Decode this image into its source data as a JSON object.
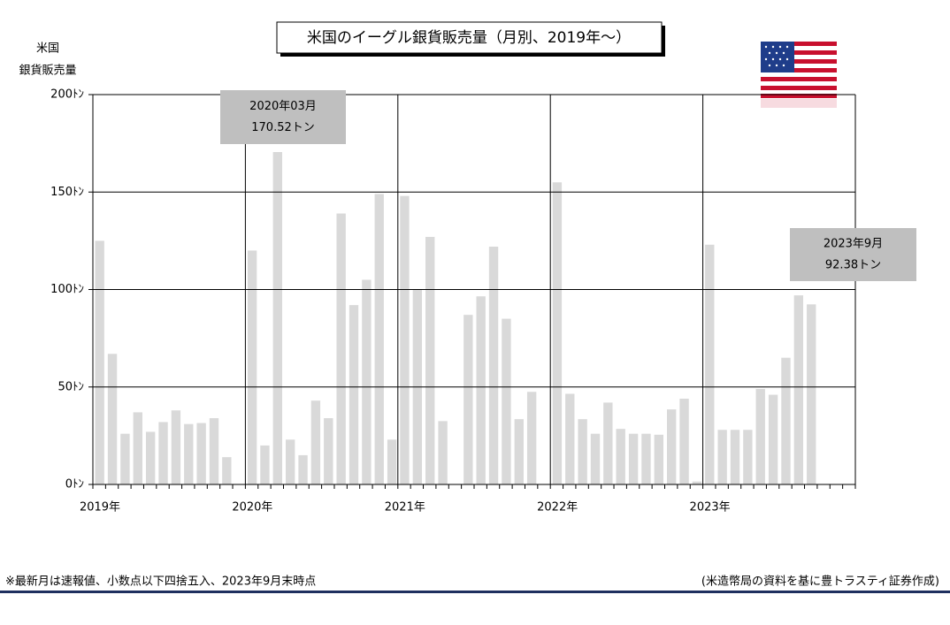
{
  "chart_data": {
    "type": "bar",
    "title": "米国のイーグル銀貨販売量（月別、2019年～）",
    "y_label": [
      "米国",
      "銀貨販売量"
    ],
    "categories": [
      "2019年",
      null,
      null,
      null,
      null,
      null,
      null,
      null,
      null,
      null,
      null,
      null,
      "2020年",
      null,
      null,
      null,
      null,
      null,
      null,
      null,
      null,
      null,
      null,
      null,
      "2021年",
      null,
      null,
      null,
      null,
      null,
      null,
      null,
      null,
      null,
      null,
      null,
      "2022年",
      null,
      null,
      null,
      null,
      null,
      null,
      null,
      null,
      null,
      null,
      null,
      "2023年",
      null,
      null,
      null,
      null,
      null,
      null,
      null,
      null,
      null,
      null,
      null
    ],
    "values": [
      125,
      67,
      26,
      37,
      27,
      32,
      38,
      31,
      31.5,
      34,
      14,
      0,
      120,
      20,
      170.52,
      23,
      15,
      43,
      34,
      139,
      92,
      105,
      149,
      23,
      148,
      100,
      127,
      32.5,
      0,
      87,
      96.5,
      122,
      85,
      33.5,
      47.5,
      0,
      155,
      46.5,
      33.5,
      26,
      42,
      28.5,
      26,
      26,
      25.5,
      38.5,
      44,
      1.5,
      123,
      28,
      28,
      28,
      49,
      46,
      65,
      97,
      92.38,
      null,
      null,
      null
    ],
    "color": "#d9d9d9",
    "ylim": [
      0,
      200
    ],
    "yticks": [
      {
        "value": 0,
        "label": "0ﾄﾝ"
      },
      {
        "value": 50,
        "label": "50ﾄﾝ"
      },
      {
        "value": 100,
        "label": "100ﾄﾝ"
      },
      {
        "value": 150,
        "label": "150ﾄﾝ"
      },
      {
        "value": 200,
        "label": "200ﾄﾝ"
      }
    ],
    "grid": true,
    "annotations": [
      {
        "text": [
          "2020年03月",
          "170.52トン"
        ]
      },
      {
        "text": [
          "2023年9月",
          "92.38トン"
        ]
      }
    ],
    "footnote": "※最新月は速報値、小数点以下四捨五入、2023年9月末時点",
    "source": "(米造幣局の資料を基に豊トラスティ証券作成)"
  }
}
